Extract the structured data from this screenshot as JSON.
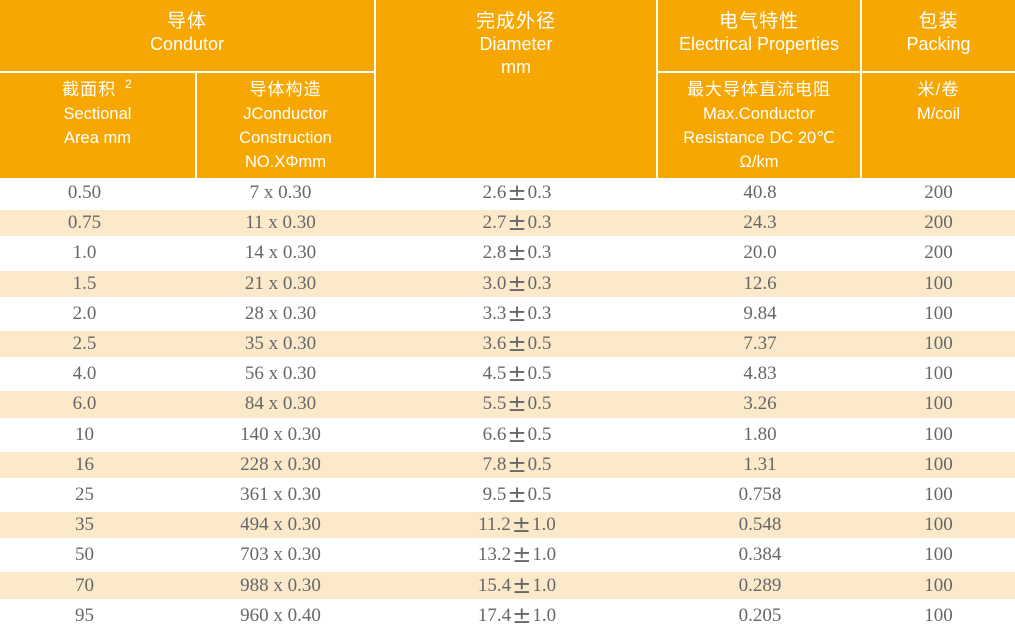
{
  "table": {
    "title_semantic": "cable-specification-table",
    "colors": {
      "header_orange": "#F7A702",
      "stripe_cream": "#FBE9CA",
      "header_text": "#FFFFFF",
      "body_text": "#66676A"
    },
    "header": {
      "conductor": {
        "zh": "导体",
        "en": "Condutor"
      },
      "sectional": {
        "zh": "截面积",
        "sup": "2",
        "en_line1": "Sectional",
        "en_line2": "Area mm"
      },
      "construction": {
        "zh": "导体构造",
        "en_line1": "JConductor",
        "en_line2": "Construction",
        "en_line3": "NO.XΦmm"
      },
      "diameter": {
        "zh": "完成外径",
        "en": "Diameter",
        "unit": "mm"
      },
      "electrical": {
        "zh": "电气特性",
        "en": "Electrical Properties"
      },
      "resistance": {
        "zh": "最大导体直流电阻",
        "en_line1": "Max.Conductor",
        "en_line2": "Resistance DC 20℃",
        "en_line3": "Ω/km"
      },
      "packing": {
        "zh": "包装",
        "en": "Packing"
      },
      "coil": {
        "zh": "米/卷",
        "en": "M/coil"
      }
    },
    "cell_names": [
      "sectional-area-cell",
      "construction-cell",
      "diameter-cell",
      "resistance-cell",
      "packing-cell"
    ],
    "rows": [
      {
        "sectional_area": "0.50",
        "construction": "7 x 0.30",
        "diameter": "2.6±0.3",
        "resistance": "40.8",
        "packing": "200"
      },
      {
        "sectional_area": "0.75",
        "construction": "11 x 0.30",
        "diameter": "2.7±0.3",
        "resistance": "24.3",
        "packing": "200"
      },
      {
        "sectional_area": "1.0",
        "construction": "14 x 0.30",
        "diameter": "2.8±0.3",
        "resistance": "20.0",
        "packing": "200"
      },
      {
        "sectional_area": "1.5",
        "construction": "21 x 0.30",
        "diameter": "3.0±0.3",
        "resistance": "12.6",
        "packing": "100"
      },
      {
        "sectional_area": "2.0",
        "construction": "28 x 0.30",
        "diameter": "3.3±0.3",
        "resistance": "9.84",
        "packing": "100"
      },
      {
        "sectional_area": "2.5",
        "construction": "35 x 0.30",
        "diameter": "3.6±0.5",
        "resistance": "7.37",
        "packing": "100"
      },
      {
        "sectional_area": "4.0",
        "construction": "56 x 0.30",
        "diameter": "4.5±0.5",
        "resistance": "4.83",
        "packing": "100"
      },
      {
        "sectional_area": "6.0",
        "construction": "84 x 0.30",
        "diameter": "5.5±0.5",
        "resistance": "3.26",
        "packing": "100"
      },
      {
        "sectional_area": "10",
        "construction": "140 x 0.30",
        "diameter": "6.6±0.5",
        "resistance": "1.80",
        "packing": "100"
      },
      {
        "sectional_area": "16",
        "construction": "228 x 0.30",
        "diameter": "7.8±0.5",
        "resistance": "1.31",
        "packing": "100"
      },
      {
        "sectional_area": "25",
        "construction": "361 x 0.30",
        "diameter": "9.5±0.5",
        "resistance": "0.758",
        "packing": "100"
      },
      {
        "sectional_area": "35",
        "construction": "494 x 0.30",
        "diameter": "11.2±1.0",
        "resistance": "0.548",
        "packing": "100"
      },
      {
        "sectional_area": "50",
        "construction": "703 x 0.30",
        "diameter": "13.2±1.0",
        "resistance": "0.384",
        "packing": "100"
      },
      {
        "sectional_area": "70",
        "construction": "988 x 0.30",
        "diameter": "15.4±1.0",
        "resistance": "0.289",
        "packing": "100"
      },
      {
        "sectional_area": "95",
        "construction": "960 x 0.40",
        "diameter": "17.4±1.0",
        "resistance": "0.205",
        "packing": "100"
      }
    ]
  }
}
